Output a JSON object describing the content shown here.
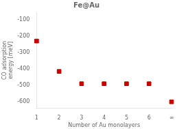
{
  "chart_data": {
    "type": "scatter",
    "title": "Fe@Au",
    "categories": [
      "1",
      "2",
      "3",
      "4",
      "5",
      "6",
      "∞"
    ],
    "values": [
      -230,
      -415,
      -490,
      -490,
      -490,
      -490,
      -600
    ],
    "color": "#cc0000",
    "marker": "square",
    "xlabel": "Number of Au monolayers",
    "ylabel": "CO adsorption\nenergy [meV]",
    "ylim": [
      -640,
      -55
    ],
    "yticks": [
      -100,
      -200,
      -300,
      -400,
      -500,
      -600
    ],
    "grid": false
  }
}
